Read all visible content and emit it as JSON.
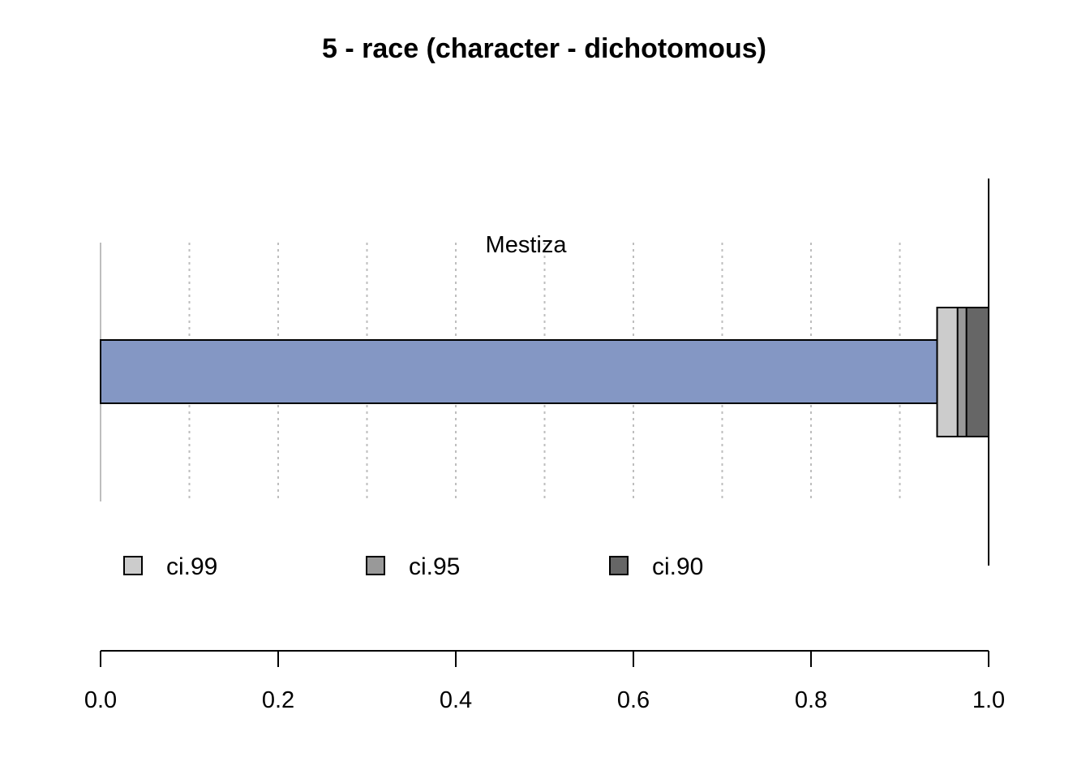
{
  "chart_data": {
    "type": "bar",
    "orientation": "horizontal",
    "title": "5 - race (character - dichotomous)",
    "categories": [
      "Mestiza"
    ],
    "values": [
      0.942
    ],
    "xlim": [
      0.0,
      1.0
    ],
    "reference_value": 1.0,
    "grid": true,
    "grid_values": [
      0.1,
      0.2,
      0.3,
      0.4,
      0.5,
      0.6,
      0.7,
      0.8,
      0.9
    ],
    "ticks": [
      {
        "value": 0.0,
        "label": "0.0"
      },
      {
        "value": 0.2,
        "label": "0.2"
      },
      {
        "value": 0.4,
        "label": "0.4"
      },
      {
        "value": 0.6,
        "label": "0.6"
      },
      {
        "value": 0.8,
        "label": "0.8"
      },
      {
        "value": 1.0,
        "label": "1.0"
      }
    ],
    "confidence_intervals": [
      {
        "name": "ci.99",
        "lower": 0.942,
        "upper": 1.0,
        "color": "#cccccc"
      },
      {
        "name": "ci.95",
        "lower": 0.965,
        "upper": 1.0,
        "color": "#999999"
      },
      {
        "name": "ci.90",
        "lower": 0.975,
        "upper": 1.0,
        "color": "#666666"
      }
    ],
    "bar_color": "#8497c4",
    "legend_position": "bottom-left"
  }
}
